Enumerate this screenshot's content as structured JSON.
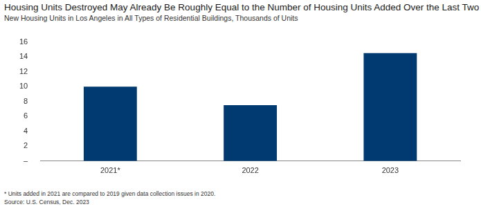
{
  "chart_data": {
    "type": "bar",
    "title": "Housing Units Destroyed May Already Be Roughly Equal to the Number of Housing Units Added Over the Last Two Years",
    "subtitle": "New Housing Units in Los Angeles in All Types of Residential Buildings, Thousands of Units",
    "categories": [
      "2021*",
      "2022",
      "2023"
    ],
    "values": [
      10,
      7.5,
      14.5
    ],
    "color": "#003a70",
    "ylim": [
      0,
      16
    ],
    "yticks": [
      {
        "value": 0,
        "label": "–"
      },
      2,
      4,
      6,
      8,
      10,
      12,
      14,
      16
    ],
    "grid": false,
    "annotations": [
      "* Units added in 2021 are compared to 2019 given data collection issues in 2020.",
      "Source: U.S. Census, Dec. 2023"
    ]
  }
}
